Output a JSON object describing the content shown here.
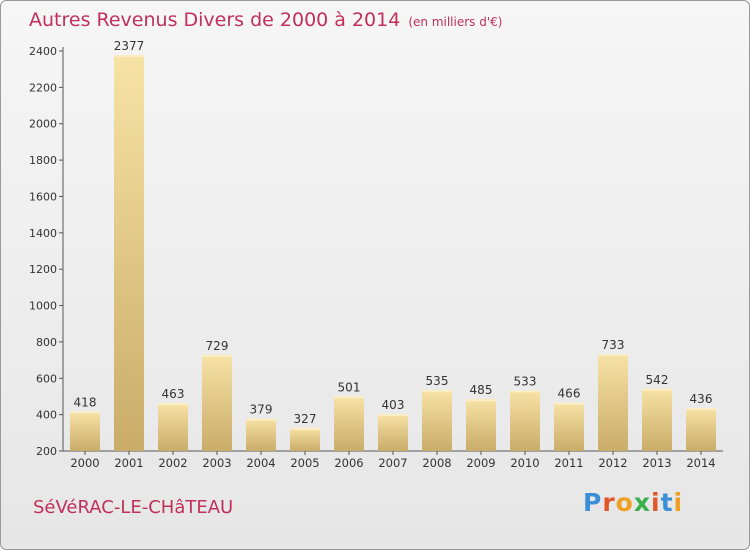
{
  "header": {
    "title": "Autres Revenus Divers de 2000 à 2014",
    "unit": "(en milliers d'€)"
  },
  "footer": {
    "commune": "SéVéRAC-LE-CHâTEAU",
    "logo_text": "Proxiti",
    "logo_colors": [
      "#3a8fd6",
      "#e2562b",
      "#f0a020",
      "#3ab04a",
      "#e2562b",
      "#3a8fd6",
      "#f0a020"
    ]
  },
  "chart_data": {
    "type": "bar",
    "title": "Autres Revenus Divers de 2000 à 2014",
    "subtitle": "(en milliers d'€)",
    "categories": [
      "2000",
      "2001",
      "2002",
      "2003",
      "2004",
      "2005",
      "2006",
      "2007",
      "2008",
      "2009",
      "2010",
      "2011",
      "2012",
      "2013",
      "2014"
    ],
    "values": [
      418,
      2377,
      463,
      729,
      379,
      327,
      501,
      403,
      535,
      485,
      533,
      466,
      733,
      542,
      436
    ],
    "ylim": [
      200,
      2400
    ],
    "yticks": [
      200,
      400,
      600,
      800,
      1000,
      1200,
      1400,
      1600,
      1800,
      2000,
      2200,
      2400
    ],
    "grid": false,
    "legend": "none",
    "bar_color": "#e9cf8a"
  }
}
